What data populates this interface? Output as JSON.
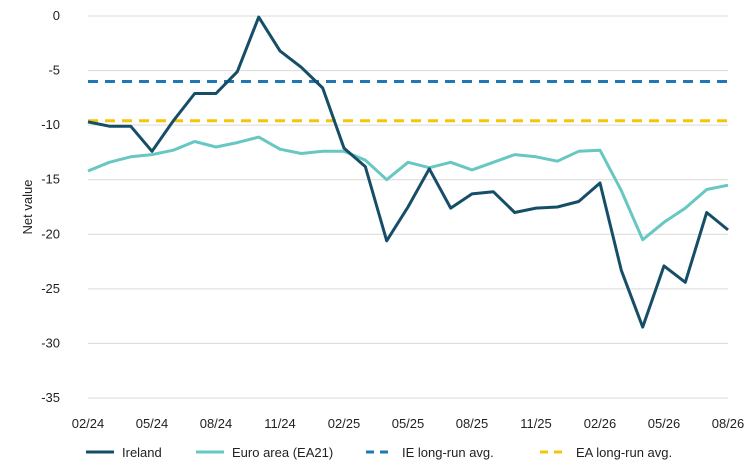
{
  "chart_data": {
    "type": "line",
    "ylabel": "Net value",
    "xlabel": "",
    "title": "",
    "ylim": [
      -35,
      0
    ],
    "yticks": [
      0,
      -5,
      -10,
      -15,
      -20,
      -25,
      -30,
      -35
    ],
    "x": [
      "02/24",
      "03/24",
      "04/24",
      "05/24",
      "06/24",
      "07/24",
      "08/24",
      "09/24",
      "10/24",
      "11/24",
      "12/24",
      "01/25",
      "02/25",
      "03/25",
      "04/25",
      "05/25",
      "06/25",
      "07/25",
      "08/25",
      "09/25",
      "10/25",
      "11/25",
      "12/25",
      "01/26",
      "02/26",
      "03/26",
      "04/26",
      "05/26",
      "06/26",
      "07/26",
      "08/26"
    ],
    "xticks": [
      "02/24",
      "05/24",
      "08/24",
      "11/24",
      "02/25",
      "05/25",
      "08/25",
      "11/25",
      "02/26",
      "05/26",
      "08/26"
    ],
    "series": [
      {
        "name": "Ireland",
        "color": "#164e68",
        "dash": "solid",
        "values": [
          -9.7,
          -10.1,
          -10.1,
          -12.4,
          -9.6,
          -7.1,
          -7.1,
          -5.1,
          -0.1,
          -3.2,
          -4.7,
          -6.6,
          -12.1,
          -13.8,
          -20.6,
          -17.5,
          -14.0,
          -17.6,
          -16.3,
          -16.1,
          -18.0,
          -17.6,
          -17.5,
          -17.0,
          -15.3,
          -23.3,
          -28.5,
          -22.9,
          -24.4,
          -18.0,
          -19.6
        ]
      },
      {
        "name": "Euro area (EA21)",
        "color": "#67c7c2",
        "dash": "solid",
        "values": [
          -14.2,
          -13.4,
          -12.9,
          -12.7,
          -12.3,
          -11.5,
          -12.0,
          -11.6,
          -11.1,
          -12.2,
          -12.6,
          -12.4,
          -12.4,
          -13.2,
          -15.0,
          -13.4,
          -13.9,
          -13.4,
          -14.1,
          -13.4,
          -12.7,
          -12.9,
          -13.3,
          -12.4,
          -12.3,
          -16.0,
          -20.5,
          -18.9,
          -17.6,
          -15.9,
          -15.5
        ]
      },
      {
        "name": "IE long-run avg.",
        "color": "#1f78b4",
        "dash": "dashed",
        "values": [
          -6.0,
          -6.0,
          -6.0,
          -6.0,
          -6.0,
          -6.0,
          -6.0,
          -6.0,
          -6.0,
          -6.0,
          -6.0,
          -6.0,
          -6.0,
          -6.0,
          -6.0,
          -6.0,
          -6.0,
          -6.0,
          -6.0,
          -6.0,
          -6.0,
          -6.0,
          -6.0,
          -6.0,
          -6.0,
          -6.0,
          -6.0,
          -6.0,
          -6.0,
          -6.0,
          -6.0
        ]
      },
      {
        "name": "EA long-run avg.",
        "color": "#f5c40c",
        "dash": "dashed",
        "values": [
          -9.6,
          -9.6,
          -9.6,
          -9.6,
          -9.6,
          -9.6,
          -9.6,
          -9.6,
          -9.6,
          -9.6,
          -9.6,
          -9.6,
          -9.6,
          -9.6,
          -9.6,
          -9.6,
          -9.6,
          -9.6,
          -9.6,
          -9.6,
          -9.6,
          -9.6,
          -9.6,
          -9.6,
          -9.6,
          -9.6,
          -9.6,
          -9.6,
          -9.6,
          -9.6,
          -9.6
        ]
      }
    ],
    "grid": "horizontal",
    "legend_position": "bottom"
  }
}
